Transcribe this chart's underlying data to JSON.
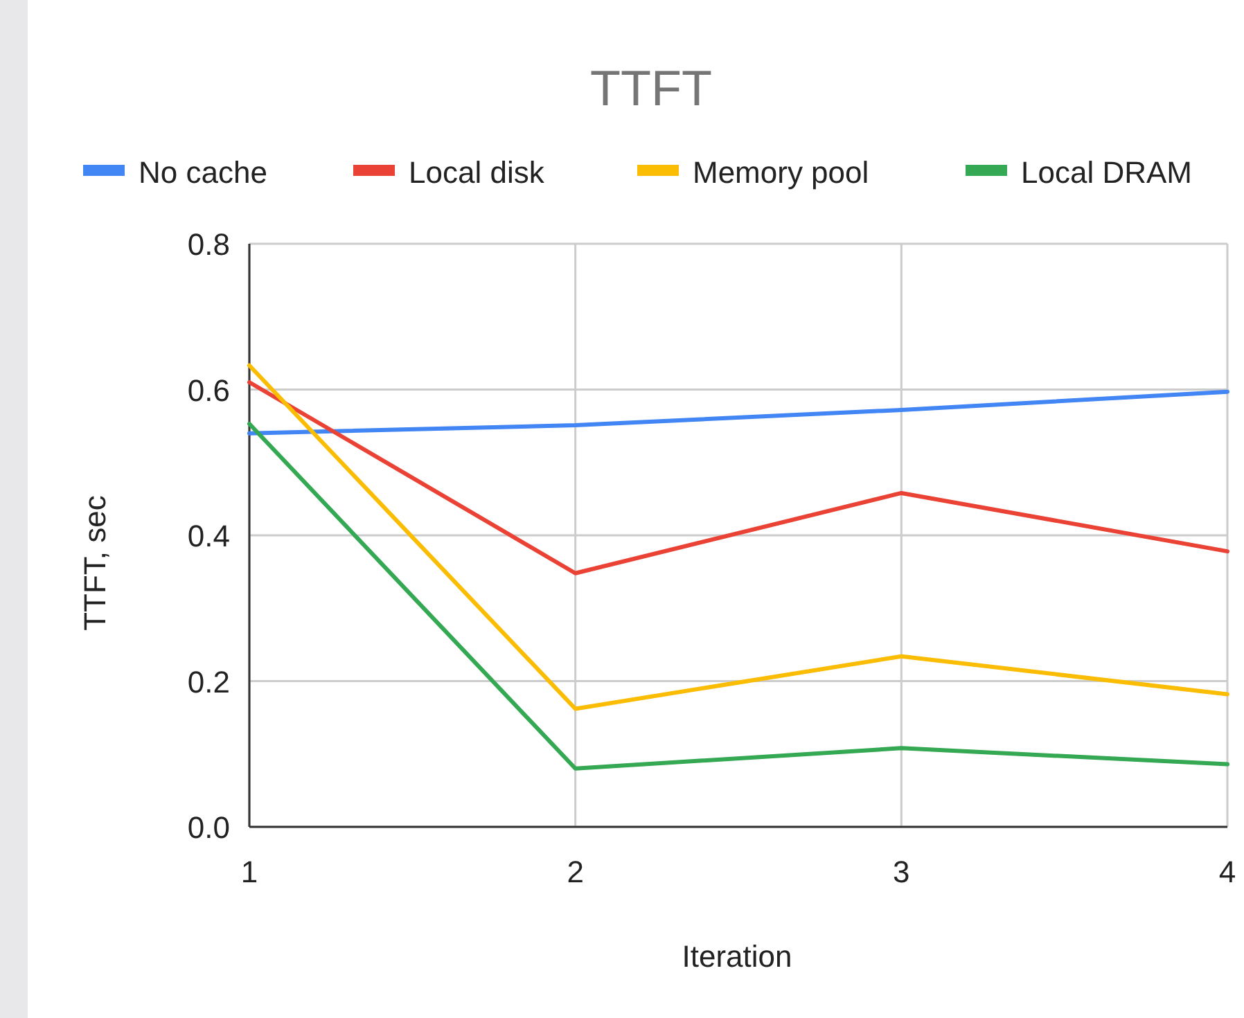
{
  "chart_data": {
    "type": "line",
    "title": "TTFT",
    "xlabel": "Iteration",
    "ylabel": "TTFT, sec",
    "x": [
      1,
      2,
      3,
      4
    ],
    "series": [
      {
        "name": "No cache",
        "color": "#4285f4",
        "values": [
          0.54,
          0.551,
          0.572,
          0.597
        ]
      },
      {
        "name": "Local disk",
        "color": "#ea4335",
        "values": [
          0.61,
          0.348,
          0.458,
          0.378
        ]
      },
      {
        "name": "Memory pool",
        "color": "#fbbc04",
        "values": [
          0.633,
          0.162,
          0.234,
          0.182
        ]
      },
      {
        "name": "Local DRAM",
        "color": "#34a853",
        "values": [
          0.553,
          0.08,
          0.108,
          0.086
        ]
      }
    ],
    "xlim": [
      1,
      4
    ],
    "xticks": [
      1,
      2,
      3,
      4
    ],
    "ylim": [
      0,
      0.8
    ],
    "yticks": [
      {
        "value": 0,
        "label": "0.0"
      },
      {
        "value": 0.2,
        "label": "0.2"
      },
      {
        "value": 0.4,
        "label": "0.4"
      },
      {
        "value": 0.6,
        "label": "0.6"
      },
      {
        "value": 0.8,
        "label": "0.8"
      }
    ],
    "grid": true,
    "legend": "top",
    "marker": "none",
    "line_style": "solid"
  }
}
